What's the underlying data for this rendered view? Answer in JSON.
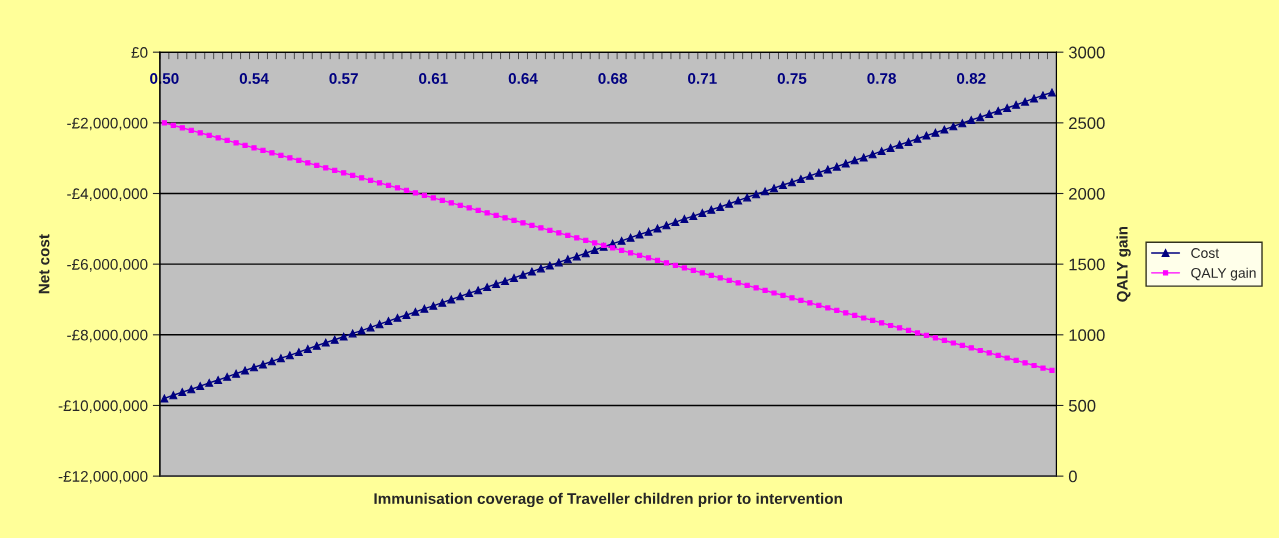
{
  "chart_data": {
    "type": "line",
    "xlabel": "Immunisation coverage of Traveller children prior to intervention",
    "ylabel": "Net cost",
    "y2label": "QALY gain",
    "categories": [
      "0.50",
      null,
      null,
      null,
      null,
      null,
      null,
      null,
      null,
      null,
      "0.54",
      null,
      null,
      null,
      null,
      null,
      null,
      null,
      null,
      null,
      "0.57",
      null,
      null,
      null,
      null,
      null,
      null,
      null,
      null,
      null,
      "0.61",
      null,
      null,
      null,
      null,
      null,
      null,
      null,
      null,
      null,
      "0.64",
      null,
      null,
      null,
      null,
      null,
      null,
      null,
      null,
      null,
      "0.68",
      null,
      null,
      null,
      null,
      null,
      null,
      null,
      null,
      null,
      "0.71",
      null,
      null,
      null,
      null,
      null,
      null,
      null,
      null,
      null,
      "0.75",
      null,
      null,
      null,
      null,
      null,
      null,
      null,
      null,
      null,
      "0.78",
      null,
      null,
      null,
      null,
      null,
      null,
      null,
      null,
      null,
      "0.82",
      null,
      null,
      null,
      null,
      null,
      null,
      null,
      null,
      null
    ],
    "series": [
      {
        "name": "Cost",
        "color": "#000080",
        "marker": "triangle",
        "values": [
          -9800000,
          -9710000,
          -9620000,
          -9540000,
          -9450000,
          -9360000,
          -9280000,
          -9190000,
          -9100000,
          -9010000,
          -8920000,
          -8840000,
          -8750000,
          -8660000,
          -8580000,
          -8490000,
          -8400000,
          -8310000,
          -8220000,
          -8140000,
          -8050000,
          -7960000,
          -7880000,
          -7790000,
          -7700000,
          -7610000,
          -7520000,
          -7440000,
          -7350000,
          -7260000,
          -7180000,
          -7090000,
          -7000000,
          -6910000,
          -6820000,
          -6740000,
          -6650000,
          -6560000,
          -6480000,
          -6390000,
          -6300000,
          -6210000,
          -6120000,
          -6040000,
          -5950000,
          -5860000,
          -5780000,
          -5690000,
          -5600000,
          -5510000,
          -5420000,
          -5340000,
          -5250000,
          -5160000,
          -5080000,
          -4990000,
          -4900000,
          -4810000,
          -4720000,
          -4640000,
          -4550000,
          -4460000,
          -4380000,
          -4290000,
          -4200000,
          -4110000,
          -4020000,
          -3940000,
          -3850000,
          -3760000,
          -3680000,
          -3590000,
          -3500000,
          -3410000,
          -3320000,
          -3240000,
          -3150000,
          -3060000,
          -2980000,
          -2890000,
          -2800000,
          -2710000,
          -2620000,
          -2540000,
          -2450000,
          -2360000,
          -2280000,
          -2190000,
          -2100000,
          -2010000,
          -1920000,
          -1840000,
          -1750000,
          -1660000,
          -1580000,
          -1490000,
          -1400000,
          -1310000,
          -1220000,
          -1140000
        ]
      },
      {
        "name": "QALY gain",
        "color": "#ff00ff",
        "marker": "square",
        "axis": "y2",
        "values": [
          2500,
          2482,
          2465,
          2447,
          2429,
          2412,
          2394,
          2376,
          2358,
          2341,
          2323,
          2305,
          2288,
          2270,
          2252,
          2235,
          2217,
          2199,
          2181,
          2164,
          2146,
          2128,
          2111,
          2093,
          2075,
          2058,
          2040,
          2022,
          2004,
          1987,
          1969,
          1951,
          1934,
          1916,
          1898,
          1881,
          1863,
          1845,
          1827,
          1810,
          1792,
          1774,
          1757,
          1739,
          1721,
          1704,
          1686,
          1668,
          1650,
          1633,
          1615,
          1597,
          1580,
          1562,
          1544,
          1527,
          1509,
          1491,
          1473,
          1456,
          1438,
          1420,
          1403,
          1385,
          1367,
          1350,
          1332,
          1314,
          1296,
          1279,
          1261,
          1243,
          1226,
          1208,
          1190,
          1173,
          1155,
          1137,
          1119,
          1102,
          1084,
          1066,
          1049,
          1031,
          1013,
          996,
          978,
          960,
          942,
          925,
          907,
          889,
          872,
          854,
          836,
          819,
          801,
          783,
          765,
          748
        ]
      }
    ],
    "ylim": [
      -12000000,
      0
    ],
    "yticks": [
      {
        "value": -12000000,
        "label": "-£12,000,000"
      },
      {
        "value": -10000000,
        "label": "-£10,000,000"
      },
      {
        "value": -8000000,
        "label": "-£8,000,000"
      },
      {
        "value": -6000000,
        "label": "-£6,000,000"
      },
      {
        "value": -4000000,
        "label": "-£4,000,000"
      },
      {
        "value": -2000000,
        "label": "-£2,000,000"
      },
      {
        "value": 0,
        "label": "£0"
      }
    ],
    "y2lim": [
      0,
      3000
    ],
    "y2ticks": [
      0,
      500,
      1000,
      1500,
      2000,
      2500,
      3000
    ],
    "grid": "y",
    "legend": "right",
    "line_style": "solid"
  }
}
